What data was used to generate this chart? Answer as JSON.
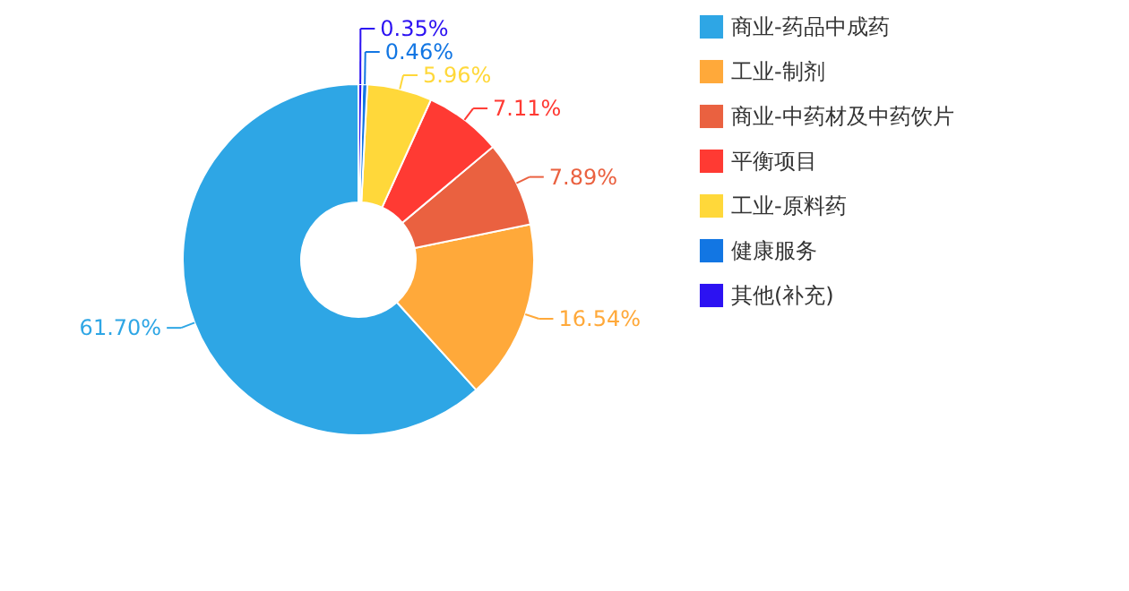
{
  "chart_data": {
    "type": "donut",
    "categories": [
      "商业-药品中成药",
      "工业-制剂",
      "商业-中药材及中药饮片",
      "平衡项目",
      "工业-原料药",
      "健康服务",
      "其他(补充)"
    ],
    "values": [
      61.7,
      16.54,
      7.89,
      7.11,
      5.96,
      0.46,
      0.35
    ],
    "colors": [
      "#2ea6e5",
      "#ffa93a",
      "#ea6140",
      "#ff3a33",
      "#ffd83a",
      "#1276e3",
      "#2c12f2"
    ],
    "value_labels": [
      "61.70%",
      "16.54%",
      "7.89%",
      "7.11%",
      "5.96%",
      "0.46%",
      "0.35%"
    ],
    "legend": "top right"
  }
}
